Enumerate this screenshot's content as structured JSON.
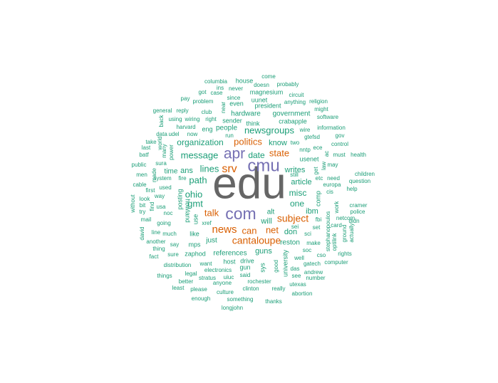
{
  "colors": {
    "gray": "#666666",
    "purple": "#7570b3",
    "orange": "#d95f02",
    "teal": "#1b9e77"
  },
  "words": [
    {
      "text": "edu",
      "color": "gray"
    },
    {
      "text": "cmu",
      "color": "purple"
    },
    {
      "text": "apr",
      "color": "purple"
    },
    {
      "text": "com",
      "color": "purple"
    },
    {
      "text": "srv",
      "color": "orange"
    },
    {
      "text": "news",
      "color": "orange"
    },
    {
      "text": "politics",
      "color": "orange"
    },
    {
      "text": "state",
      "color": "orange"
    },
    {
      "text": "subject",
      "color": "orange"
    },
    {
      "text": "talk",
      "color": "orange"
    },
    {
      "text": "can",
      "color": "orange"
    },
    {
      "text": "net",
      "color": "orange"
    },
    {
      "text": "cantaloupe",
      "color": "orange"
    },
    {
      "text": "newsgroups",
      "color": "teal"
    },
    {
      "text": "organization",
      "color": "teal"
    },
    {
      "text": "message",
      "color": "teal"
    },
    {
      "text": "date",
      "color": "teal"
    },
    {
      "text": "lines",
      "color": "teal"
    },
    {
      "text": "path",
      "color": "teal"
    },
    {
      "text": "ohio",
      "color": "teal"
    },
    {
      "text": "gmt",
      "color": "teal"
    },
    {
      "text": "one",
      "color": "teal"
    },
    {
      "text": "misc",
      "color": "teal"
    },
    {
      "text": "article",
      "color": "teal"
    },
    {
      "text": "writes",
      "color": "teal"
    },
    {
      "text": "ans",
      "color": "teal"
    },
    {
      "text": "time",
      "color": "teal"
    },
    {
      "text": "know",
      "color": "teal"
    },
    {
      "text": "ibm",
      "color": "teal"
    },
    {
      "text": "will",
      "color": "teal"
    },
    {
      "text": "alt",
      "color": "teal"
    },
    {
      "text": "don",
      "color": "teal"
    },
    {
      "text": "guns",
      "color": "teal"
    },
    {
      "text": "references",
      "color": "teal"
    },
    {
      "text": "reston",
      "color": "teal"
    },
    {
      "text": "just",
      "color": "teal"
    },
    {
      "text": "people",
      "color": "teal"
    },
    {
      "text": "hardware",
      "color": "teal"
    },
    {
      "text": "government",
      "color": "teal"
    },
    {
      "text": "posting",
      "color": "teal"
    },
    {
      "text": "howland",
      "color": "teal"
    },
    {
      "text": "use",
      "color": "teal"
    },
    {
      "text": "like",
      "color": "teal"
    },
    {
      "text": "mps",
      "color": "teal"
    },
    {
      "text": "xref",
      "color": "teal"
    },
    {
      "text": "zaphod",
      "color": "teal"
    },
    {
      "text": "host",
      "color": "teal"
    },
    {
      "text": "gun",
      "color": "teal"
    },
    {
      "text": "drive",
      "color": "teal"
    },
    {
      "text": "sys",
      "color": "teal"
    },
    {
      "text": "good",
      "color": "teal"
    },
    {
      "text": "university",
      "color": "teal"
    },
    {
      "text": "comp",
      "color": "teal"
    },
    {
      "text": "usenet",
      "color": "teal"
    },
    {
      "text": "two",
      "color": "teal"
    },
    {
      "text": "think",
      "color": "teal"
    },
    {
      "text": "sender",
      "color": "teal"
    },
    {
      "text": "club",
      "color": "teal"
    },
    {
      "text": "eng",
      "color": "teal"
    },
    {
      "text": "right",
      "color": "teal"
    },
    {
      "text": "crabapple",
      "color": "teal"
    },
    {
      "text": "uunet",
      "color": "teal"
    },
    {
      "text": "president",
      "color": "teal"
    },
    {
      "text": "magnesium",
      "color": "teal"
    },
    {
      "text": "even",
      "color": "teal"
    },
    {
      "text": "since",
      "color": "teal"
    },
    {
      "text": "never",
      "color": "teal"
    },
    {
      "text": "house",
      "color": "teal"
    },
    {
      "text": "come",
      "color": "teal"
    },
    {
      "text": "doesn",
      "color": "teal"
    },
    {
      "text": "probably",
      "color": "teal"
    },
    {
      "text": "columbia",
      "color": "teal"
    },
    {
      "text": "ins",
      "color": "teal"
    },
    {
      "text": "got",
      "color": "teal"
    },
    {
      "text": "case",
      "color": "teal"
    },
    {
      "text": "pay",
      "color": "teal"
    },
    {
      "text": "problem",
      "color": "teal"
    },
    {
      "text": "near",
      "color": "teal"
    },
    {
      "text": "circuit",
      "color": "teal"
    },
    {
      "text": "anything",
      "color": "teal"
    },
    {
      "text": "religion",
      "color": "teal"
    },
    {
      "text": "might",
      "color": "teal"
    },
    {
      "text": "software",
      "color": "teal"
    },
    {
      "text": "information",
      "color": "teal"
    },
    {
      "text": "gov",
      "color": "teal"
    },
    {
      "text": "control",
      "color": "teal"
    },
    {
      "text": "health",
      "color": "teal"
    },
    {
      "text": "children",
      "color": "teal"
    },
    {
      "text": "question",
      "color": "teal"
    },
    {
      "text": "help",
      "color": "teal"
    },
    {
      "text": "cramer",
      "color": "teal"
    },
    {
      "text": "police",
      "color": "teal"
    },
    {
      "text": "didn",
      "color": "teal"
    },
    {
      "text": "actually",
      "color": "teal"
    },
    {
      "text": "ground",
      "color": "teal"
    },
    {
      "text": "rights",
      "color": "teal"
    },
    {
      "text": "computer",
      "color": "teal"
    },
    {
      "text": "netcom",
      "color": "teal"
    },
    {
      "text": "work",
      "color": "teal"
    },
    {
      "text": "cis",
      "color": "teal"
    },
    {
      "text": "europa",
      "color": "teal"
    },
    {
      "text": "need",
      "color": "teal"
    },
    {
      "text": "may",
      "color": "teal"
    },
    {
      "text": "must",
      "color": "teal"
    },
    {
      "text": "etc",
      "color": "teal"
    },
    {
      "text": "ece",
      "color": "teal"
    },
    {
      "text": "nntp",
      "color": "teal"
    },
    {
      "text": "gtefsd",
      "color": "teal"
    },
    {
      "text": "wire",
      "color": "teal"
    },
    {
      "text": "still",
      "color": "teal"
    },
    {
      "text": "get",
      "color": "teal"
    },
    {
      "text": "law",
      "color": "teal"
    },
    {
      "text": "ac",
      "color": "teal"
    },
    {
      "text": "set",
      "color": "teal"
    },
    {
      "text": "card",
      "color": "teal"
    },
    {
      "text": "optilink",
      "color": "teal"
    },
    {
      "text": "stephanopoulos",
      "color": "teal"
    },
    {
      "text": "cso",
      "color": "teal"
    },
    {
      "text": "gatech",
      "color": "teal"
    },
    {
      "text": "andrew",
      "color": "teal"
    },
    {
      "text": "number",
      "color": "teal"
    },
    {
      "text": "utexas",
      "color": "teal"
    },
    {
      "text": "abortion",
      "color": "teal"
    },
    {
      "text": "thanks",
      "color": "teal"
    },
    {
      "text": "really",
      "color": "teal"
    },
    {
      "text": "rochester",
      "color": "teal"
    },
    {
      "text": "clinton",
      "color": "teal"
    },
    {
      "text": "something",
      "color": "teal"
    },
    {
      "text": "longjohn",
      "color": "teal"
    },
    {
      "text": "culture",
      "color": "teal"
    },
    {
      "text": "anyone",
      "color": "teal"
    },
    {
      "text": "said",
      "color": "teal"
    },
    {
      "text": "uiuc",
      "color": "teal"
    },
    {
      "text": "stratus",
      "color": "teal"
    },
    {
      "text": "electronics",
      "color": "teal"
    },
    {
      "text": "want",
      "color": "teal"
    },
    {
      "text": "please",
      "color": "teal"
    },
    {
      "text": "enough",
      "color": "teal"
    },
    {
      "text": "least",
      "color": "teal"
    },
    {
      "text": "better",
      "color": "teal"
    },
    {
      "text": "legal",
      "color": "teal"
    },
    {
      "text": "things",
      "color": "teal"
    },
    {
      "text": "distribution",
      "color": "teal"
    },
    {
      "text": "thing",
      "color": "teal"
    },
    {
      "text": "fact",
      "color": "teal"
    },
    {
      "text": "sure",
      "color": "teal"
    },
    {
      "text": "say",
      "color": "teal"
    },
    {
      "text": "another",
      "color": "teal"
    },
    {
      "text": "much",
      "color": "teal"
    },
    {
      "text": "line",
      "color": "teal"
    },
    {
      "text": "david",
      "color": "teal"
    },
    {
      "text": "going",
      "color": "teal"
    },
    {
      "text": "noc",
      "color": "teal"
    },
    {
      "text": "usa",
      "color": "teal"
    },
    {
      "text": "mail",
      "color": "teal"
    },
    {
      "text": "try",
      "color": "teal"
    },
    {
      "text": "bit",
      "color": "teal"
    },
    {
      "text": "look",
      "color": "teal"
    },
    {
      "text": "find",
      "color": "teal"
    },
    {
      "text": "without",
      "color": "teal"
    },
    {
      "text": "way",
      "color": "teal"
    },
    {
      "text": "first",
      "color": "teal"
    },
    {
      "text": "used",
      "color": "teal"
    },
    {
      "text": "system",
      "color": "teal"
    },
    {
      "text": "fire",
      "color": "teal"
    },
    {
      "text": "cable",
      "color": "teal"
    },
    {
      "text": "men",
      "color": "teal"
    },
    {
      "text": "made",
      "color": "teal"
    },
    {
      "text": "public",
      "color": "teal"
    },
    {
      "text": "sura",
      "color": "teal"
    },
    {
      "text": "batf",
      "color": "teal"
    },
    {
      "text": "last",
      "color": "teal"
    },
    {
      "text": "many",
      "color": "teal"
    },
    {
      "text": "power",
      "color": "teal"
    },
    {
      "text": "world",
      "color": "teal"
    },
    {
      "text": "take",
      "color": "teal"
    },
    {
      "text": "data",
      "color": "teal"
    },
    {
      "text": "udel",
      "color": "teal"
    },
    {
      "text": "now",
      "color": "teal"
    },
    {
      "text": "run",
      "color": "teal"
    },
    {
      "text": "harvard",
      "color": "teal"
    },
    {
      "text": "back",
      "color": "teal"
    },
    {
      "text": "using",
      "color": "teal"
    },
    {
      "text": "wiring",
      "color": "teal"
    },
    {
      "text": "general",
      "color": "teal"
    },
    {
      "text": "reply",
      "color": "teal"
    },
    {
      "text": "sci",
      "color": "teal"
    },
    {
      "text": "soc",
      "color": "teal"
    },
    {
      "text": "make",
      "color": "teal"
    },
    {
      "text": "well",
      "color": "teal"
    },
    {
      "text": "das",
      "color": "teal"
    },
    {
      "text": "see",
      "color": "teal"
    },
    {
      "text": "fbi",
      "color": "teal"
    },
    {
      "text": "sei",
      "color": "teal"
    }
  ]
}
